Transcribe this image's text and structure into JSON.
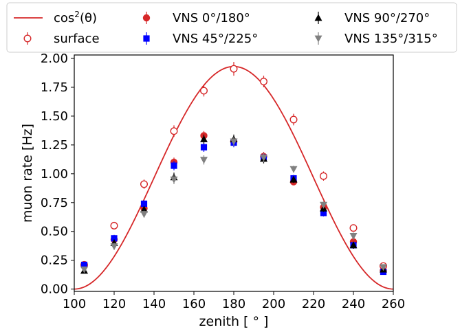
{
  "chart_data": {
    "type": "scatter",
    "xlabel": "zenith [$^\\circ$]",
    "xlabel_display": "zenith [ ° ]",
    "ylabel": "muon rate [Hz]",
    "xlim": [
      100,
      260
    ],
    "ylim": [
      -0.02,
      2.03
    ],
    "xticks": [
      "100",
      "120",
      "140",
      "160",
      "180",
      "200",
      "220",
      "240",
      "260"
    ],
    "yticks": [
      "0.00",
      "0.25",
      "0.50",
      "0.75",
      "1.00",
      "1.25",
      "1.50",
      "1.75",
      "2.00"
    ],
    "grid": false,
    "legend_position": "top",
    "curve": {
      "name": "cos²(θ)",
      "name_base": "cos",
      "name_sup": "2",
      "name_arg": "(θ)",
      "color": "#d62728",
      "amplitude": 1.93,
      "center": 180,
      "half_period": 80
    },
    "series": [
      {
        "name": "surface",
        "marker": "open-circle",
        "color": "#d62728",
        "x": [
          105,
          120,
          135,
          150,
          165,
          180,
          195,
          210,
          225,
          240,
          255
        ],
        "y": [
          0.21,
          0.55,
          0.91,
          1.37,
          1.72,
          1.91,
          1.8,
          1.47,
          0.98,
          0.53,
          0.2
        ],
        "err": [
          0.03,
          0.03,
          0.04,
          0.05,
          0.05,
          0.06,
          0.05,
          0.05,
          0.04,
          0.03,
          0.03
        ]
      },
      {
        "name": "VNS 0°/180°",
        "marker": "circle",
        "color": "#d62728",
        "x": [
          105,
          120,
          135,
          150,
          165,
          180,
          195,
          210,
          225,
          240,
          255
        ],
        "y": [
          0.2,
          0.43,
          0.7,
          1.1,
          1.33,
          1.28,
          1.15,
          0.93,
          0.71,
          0.41,
          0.16
        ],
        "err": [
          0.02,
          0.03,
          0.03,
          0.04,
          0.04,
          0.04,
          0.04,
          0.03,
          0.03,
          0.03,
          0.02
        ]
      },
      {
        "name": "VNS 45°/225°",
        "marker": "square",
        "color": "#0000ff",
        "x": [
          105,
          120,
          135,
          150,
          165,
          180,
          195,
          210,
          225,
          240,
          255
        ],
        "y": [
          0.21,
          0.44,
          0.74,
          1.07,
          1.23,
          1.27,
          1.14,
          0.96,
          0.66,
          0.38,
          0.15
        ],
        "err": [
          0.02,
          0.03,
          0.03,
          0.04,
          0.04,
          0.04,
          0.04,
          0.03,
          0.03,
          0.03,
          0.02
        ]
      },
      {
        "name": "VNS 90°/270°",
        "marker": "triangle-up",
        "color": "#000000",
        "x": [
          105,
          120,
          135,
          150,
          165,
          180,
          195,
          210,
          225,
          240,
          255
        ],
        "y": [
          0.16,
          0.4,
          0.69,
          0.97,
          1.3,
          1.3,
          1.13,
          0.95,
          0.7,
          0.38,
          0.17
        ],
        "err": [
          0.02,
          0.03,
          0.03,
          0.04,
          0.04,
          0.04,
          0.04,
          0.03,
          0.03,
          0.03,
          0.02
        ]
      },
      {
        "name": "VNS 135°/315°",
        "marker": "triangle-down",
        "color": "#808080",
        "x": [
          105,
          120,
          135,
          150,
          165,
          180,
          195,
          210,
          225,
          240,
          255
        ],
        "y": [
          0.17,
          0.37,
          0.65,
          0.95,
          1.12,
          1.28,
          1.14,
          1.04,
          0.73,
          0.46,
          0.19
        ],
        "err": [
          0.02,
          0.03,
          0.03,
          0.04,
          0.04,
          0.04,
          0.04,
          0.03,
          0.03,
          0.03,
          0.02
        ]
      }
    ]
  }
}
